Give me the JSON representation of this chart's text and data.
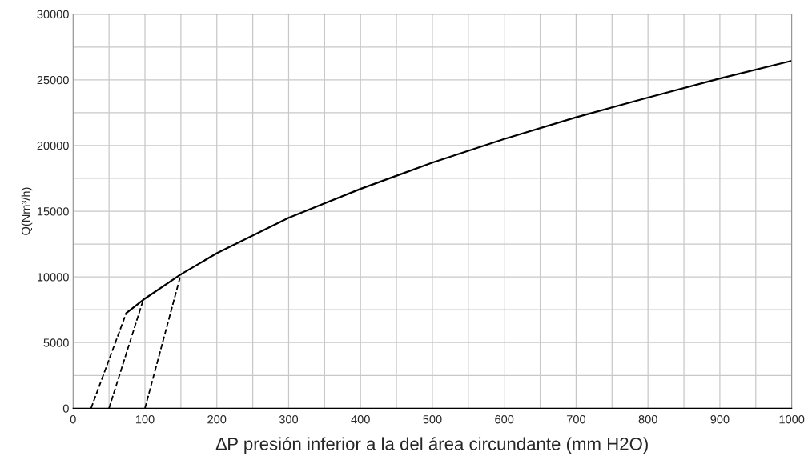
{
  "chart_data": {
    "type": "line",
    "xlabel": "∆P presión inferior a la del área circundante (mm H2O)",
    "ylabel": "Q(Nm³/h)",
    "series": [
      {
        "color": "#000000",
        "line_style": "solid",
        "x": [
          74,
          100,
          150,
          200,
          300,
          400,
          500,
          600,
          700,
          800,
          900,
          1000
        ],
        "values": [
          7250,
          8350,
          10200,
          11800,
          14500,
          16700,
          18700,
          20500,
          22150,
          23650,
          25100,
          26450
        ]
      },
      {
        "color": "#000000",
        "line_style": "dashed",
        "x": [
          25,
          74
        ],
        "values": [
          0,
          7250
        ]
      },
      {
        "color": "#000000",
        "line_style": "dashed",
        "x": [
          50,
          97
        ],
        "values": [
          0,
          8150
        ]
      },
      {
        "color": "#000000",
        "line_style": "dashed",
        "x": [
          100,
          150
        ],
        "values": [
          0,
          10200
        ]
      }
    ],
    "xlim": [
      0,
      1000
    ],
    "ylim": [
      0,
      30000
    ],
    "xticks": [
      0,
      100,
      200,
      300,
      400,
      500,
      600,
      700,
      800,
      900,
      1000
    ],
    "yticks": [
      0,
      5000,
      10000,
      15000,
      20000,
      25000,
      30000
    ],
    "grid": true,
    "marker": "none"
  }
}
